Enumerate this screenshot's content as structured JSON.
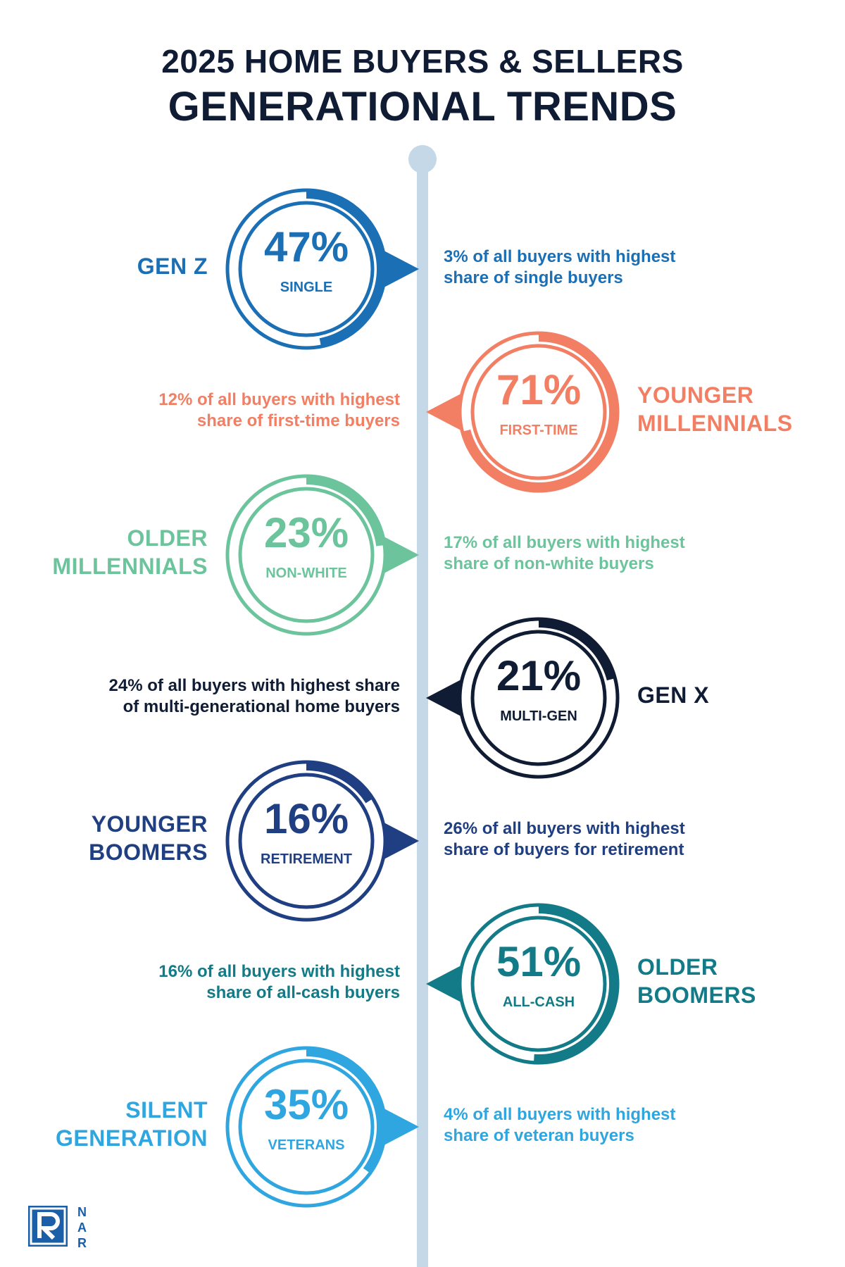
{
  "header": {
    "title_line1": "2025 HOME BUYERS & SELLERS",
    "title_line2": "GENERATIONAL TRENDS"
  },
  "generations": [
    {
      "name": "GEN Z",
      "percent_text": "47%",
      "metric": "SINGLE",
      "value": 47,
      "description": "3% of all buyers with highest\nshare of single buyers",
      "color": "#1a6fb5",
      "side": "left"
    },
    {
      "name": "YOUNGER\nMILLENNIALS",
      "percent_text": "71%",
      "metric": "FIRST-TIME",
      "value": 71,
      "description": "12% of all buyers with highest\nshare of first-time buyers",
      "color": "#f27f64",
      "side": "right"
    },
    {
      "name": "OLDER\nMILLENNIALS",
      "percent_text": "23%",
      "metric": "NON-WHITE",
      "value": 23,
      "description": "17% of all buyers with highest\nshare of non-white buyers",
      "color": "#6cc49c",
      "side": "left"
    },
    {
      "name": "GEN X",
      "percent_text": "21%",
      "metric": "MULTI-GEN",
      "value": 21,
      "description": "24% of all buyers with highest share\nof multi-generational home buyers",
      "color": "#0f1c33",
      "side": "right"
    },
    {
      "name": "YOUNGER\nBOOMERS",
      "percent_text": "16%",
      "metric": "RETIREMENT",
      "value": 16,
      "description": "26% of all buyers with highest\nshare of buyers for retirement",
      "color": "#1f3f82",
      "side": "left"
    },
    {
      "name": "OLDER\nBOOMERS",
      "percent_text": "51%",
      "metric": "ALL-CASH",
      "value": 51,
      "description": "16% of all buyers with highest\nshare of all-cash buyers",
      "color": "#137a87",
      "side": "right"
    },
    {
      "name": "SILENT\nGENERATION",
      "percent_text": "35%",
      "metric": "VETERANS",
      "value": 35,
      "description": "4% of all buyers with highest\nshare of veteran buyers",
      "color": "#2fa6e0",
      "side": "left"
    }
  ],
  "timeline_color": "#c4d8e8",
  "logo": {
    "letters": "N\nA\nR",
    "color": "#1a5fa8"
  }
}
